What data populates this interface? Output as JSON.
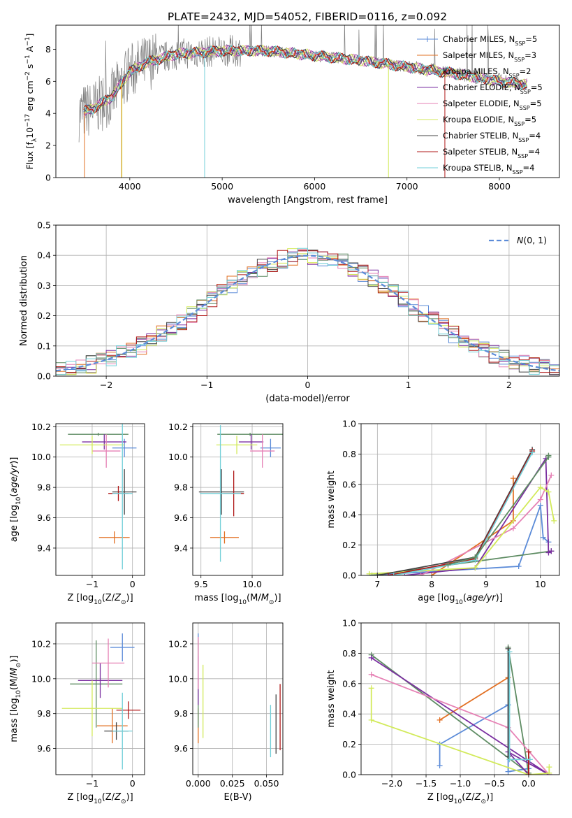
{
  "figure_title": "PLATE=2432, MJD=54052, FIBERID=0116, z=0.092",
  "colors": {
    "Chabrier MILES": "#5b8bd8",
    "Salpeter MILES": "#e27023",
    "Kroupa MILES": "#5e8c63",
    "Chabrier ELODIE": "#7a2ea0",
    "Salpeter ELODIE": "#e681b5",
    "Kroupa ELODIE": "#d2ea5a",
    "Chabrier STELIB": "#444444",
    "Salpeter STELIB": "#b01818",
    "Kroupa STELIB": "#72cfd8",
    "data_spectrum": "#7f7f7f",
    "gaussian": "#5b8bd8",
    "grid": "#b0b0b0"
  },
  "chart_data": [
    {
      "type": "line",
      "id": "spectrum",
      "title": "",
      "xlabel": "wavelength [Angstrom, rest frame]",
      "ylabel": "Flux [f_λ 10^-17 erg cm^-2 s^-1 A^-1]",
      "xlim": [
        3200,
        8650
      ],
      "ylim": [
        0,
        9.5
      ],
      "xticks": [
        4000,
        5000,
        6000,
        7000,
        8000
      ],
      "yticks": [
        0,
        2,
        4,
        6,
        8
      ],
      "grid": false,
      "legend_position": "top-right",
      "data_continuum": {
        "x": [
          3450,
          3600,
          3800,
          4000,
          4200,
          4500,
          5000,
          5500,
          6000,
          6500,
          7000,
          7500,
          8000,
          8300
        ],
        "y": [
          4.0,
          4.3,
          5.0,
          6.6,
          7.2,
          7.7,
          7.9,
          7.9,
          7.6,
          7.3,
          6.9,
          6.5,
          6.0,
          5.8
        ]
      },
      "legend": [
        {
          "model": "Chabrier MILES",
          "n_ssp": "5"
        },
        {
          "model": "Salpeter MILES",
          "n_ssp": "3"
        },
        {
          "model": "Kroupa MILES",
          "n_ssp": "2"
        },
        {
          "model": "Chabrier ELODIE",
          "n_ssp": "5"
        },
        {
          "model": "Salpeter ELODIE",
          "n_ssp": "5"
        },
        {
          "model": "Kroupa ELODIE",
          "n_ssp": "5"
        },
        {
          "model": "Chabrier STELIB",
          "n_ssp": "4"
        },
        {
          "model": "Salpeter STELIB",
          "n_ssp": "4"
        },
        {
          "model": "Kroupa STELIB",
          "n_ssp": "4"
        }
      ]
    },
    {
      "type": "step",
      "id": "residuals",
      "title": "",
      "xlabel": "(data-model)/error",
      "ylabel": "Normed distribution",
      "xlim": [
        -2.5,
        2.5
      ],
      "ylim": [
        0,
        0.5
      ],
      "xticks": [
        -2,
        -1,
        0,
        1,
        2
      ],
      "yticks": [
        0.0,
        0.1,
        0.2,
        0.3,
        0.4,
        0.5
      ],
      "grid": true,
      "legend_position": "top-right",
      "gaussian_label": "N(0,1)",
      "bin_edges": [
        -2.5,
        -2.4,
        -2.3,
        -2.2,
        -2.1,
        -2.0,
        -1.9,
        -1.8,
        -1.7,
        -1.6,
        -1.5,
        -1.4,
        -1.3,
        -1.2,
        -1.1,
        -1.0,
        -0.9,
        -0.8,
        -0.7,
        -0.6,
        -0.5,
        -0.4,
        -0.3,
        -0.2,
        -0.1,
        0.0,
        0.1,
        0.2,
        0.3,
        0.4,
        0.5,
        0.6,
        0.7,
        0.8,
        0.9,
        1.0,
        1.1,
        1.2,
        1.3,
        1.4,
        1.5,
        1.6,
        1.7,
        1.8,
        1.9,
        2.0,
        2.1,
        2.2,
        2.3,
        2.4,
        2.5
      ]
    },
    {
      "type": "errorbar",
      "id": "age-vs-Z",
      "xlabel": "Z [log10(Z/Z☉)]",
      "ylabel": "age  [log10(age/yr)]",
      "xlim": [
        -1.9,
        0.3
      ],
      "ylim": [
        9.22,
        10.22
      ],
      "xticks": [
        -1,
        0
      ],
      "yticks": [
        9.4,
        9.6,
        9.8,
        10.0,
        10.2
      ],
      "grid": true,
      "points": [
        {
          "model": "Chabrier MILES",
          "x": -0.2,
          "y": 10.06,
          "xerr": 0.3,
          "yerr": 0.06
        },
        {
          "model": "Salpeter MILES",
          "x": -0.45,
          "y": 9.47,
          "xerr": 0.38,
          "yerr": 0.04
        },
        {
          "model": "Kroupa MILES",
          "x": -0.85,
          "y": 10.15,
          "xerr": 0.75,
          "yerr": 0.01
        },
        {
          "model": "Chabrier ELODIE",
          "x": -0.7,
          "y": 10.1,
          "xerr": 0.55,
          "yerr": 0.05
        },
        {
          "model": "Salpeter ELODIE",
          "x": -0.65,
          "y": 10.04,
          "xerr": 0.35,
          "yerr": 0.11
        },
        {
          "model": "Kroupa ELODIE",
          "x": -1.0,
          "y": 10.08,
          "xerr": 0.8,
          "yerr": 0.06
        },
        {
          "model": "Chabrier STELIB",
          "x": -0.2,
          "y": 9.77,
          "xerr": 0.3,
          "yerr": 0.15
        },
        {
          "model": "Salpeter STELIB",
          "x": -0.35,
          "y": 9.76,
          "xerr": 0.25,
          "yerr": 0.05
        },
        {
          "model": "Kroupa STELIB",
          "x": -0.25,
          "y": 9.76,
          "xerr": 0.25,
          "yerr": 0.5
        }
      ]
    },
    {
      "type": "errorbar",
      "id": "age-vs-mass",
      "xlabel": "mass [log10(M/M☉)]",
      "ylabel": "",
      "xlim": [
        9.42,
        10.3
      ],
      "ylim": [
        9.22,
        10.22
      ],
      "xticks": [
        9.5,
        10.0
      ],
      "yticks": [
        9.4,
        9.6,
        9.8,
        10.0,
        10.2
      ],
      "grid": true,
      "points": [
        {
          "model": "Chabrier MILES",
          "x": 10.18,
          "y": 10.06,
          "xerr": 0.1,
          "yerr": 0.06
        },
        {
          "model": "Salpeter MILES",
          "x": 9.73,
          "y": 9.47,
          "xerr": 0.14,
          "yerr": 0.04
        },
        {
          "model": "Kroupa MILES",
          "x": 9.98,
          "y": 10.15,
          "xerr": 0.32,
          "yerr": 0.01
        },
        {
          "model": "Chabrier ELODIE",
          "x": 9.99,
          "y": 10.1,
          "xerr": 0.12,
          "yerr": 0.05
        },
        {
          "model": "Salpeter ELODIE",
          "x": 10.1,
          "y": 10.04,
          "xerr": 0.12,
          "yerr": 0.11
        },
        {
          "model": "Kroupa ELODIE",
          "x": 9.85,
          "y": 10.08,
          "xerr": 0.2,
          "yerr": 0.06
        },
        {
          "model": "Chabrier STELIB",
          "x": 9.7,
          "y": 9.77,
          "xerr": 0.22,
          "yerr": 0.15
        },
        {
          "model": "Salpeter STELIB",
          "x": 9.82,
          "y": 9.76,
          "xerr": 0.1,
          "yerr": 0.15
        },
        {
          "model": "Kroupa STELIB",
          "x": 9.69,
          "y": 9.76,
          "xerr": 0.2,
          "yerr": 0.45
        }
      ]
    },
    {
      "type": "line",
      "id": "weight-vs-age",
      "xlabel": "age  [log10(age/yr)]",
      "ylabel": "mass weight",
      "xlim": [
        6.7,
        10.35
      ],
      "ylim": [
        0,
        1.0
      ],
      "xticks": [
        7,
        8,
        9,
        10
      ],
      "yticks": [
        0.0,
        0.2,
        0.4,
        0.6,
        0.8,
        1.0
      ],
      "grid": true,
      "series": [
        {
          "model": "Chabrier MILES",
          "x": [
            6.85,
            9.6,
            10.0,
            10.05,
            10.15
          ],
          "y": [
            0.0,
            0.06,
            0.46,
            0.25,
            0.22
          ]
        },
        {
          "model": "Salpeter MILES",
          "x": [
            8.0,
            9.5,
            9.5
          ],
          "y": [
            0.0,
            0.36,
            0.64
          ]
        },
        {
          "model": "Kroupa MILES",
          "x": [
            6.9,
            10.2
          ],
          "y": [
            0.0,
            0.16
          ]
        },
        {
          "model": "Chabrier ELODIE",
          "x": [
            7.5,
            8.8,
            10.1,
            10.15,
            10.2
          ],
          "y": [
            0.0,
            0.05,
            0.77,
            0.15,
            0.16
          ]
        },
        {
          "model": "Salpeter ELODIE",
          "x": [
            7.8,
            9.5,
            10.0,
            10.2
          ],
          "y": [
            0.0,
            0.31,
            0.5,
            0.66
          ]
        },
        {
          "model": "Kroupa ELODIE",
          "x": [
            6.85,
            8.8,
            10.0,
            10.15,
            10.25
          ],
          "y": [
            0.01,
            0.05,
            0.58,
            0.55,
            0.36
          ]
        },
        {
          "model": "Chabrier STELIB",
          "x": [
            7.0,
            8.8,
            9.85
          ],
          "y": [
            0.0,
            0.12,
            0.83
          ]
        },
        {
          "model": "Salpeter STELIB",
          "x": [
            7.2,
            8.8,
            9.85
          ],
          "y": [
            0.0,
            0.11,
            0.82
          ]
        },
        {
          "model": "Kroupa STELIB",
          "x": [
            7.3,
            8.8,
            9.85
          ],
          "y": [
            0.0,
            0.1,
            0.81
          ]
        },
        {
          "model": "Kroupa MILES",
          "x": [
            8.3,
            8.8,
            10.15,
            10.15
          ],
          "y": [
            0.07,
            0.12,
            0.78,
            0.79
          ]
        }
      ]
    },
    {
      "type": "errorbar",
      "id": "mass-vs-Z",
      "xlabel": "Z [log10(Z/Z☉)]",
      "ylabel": "mass [log10(M/M☉)]",
      "xlim": [
        -1.9,
        0.3
      ],
      "ylim": [
        9.45,
        10.32
      ],
      "xticks": [
        -1,
        0
      ],
      "yticks": [
        9.6,
        9.8,
        10.0,
        10.2
      ],
      "grid": true,
      "points": [
        {
          "model": "Chabrier MILES",
          "x": -0.25,
          "y": 10.18,
          "xerr": 0.3,
          "yerr": 0.08
        },
        {
          "model": "Salpeter MILES",
          "x": -0.5,
          "y": 9.73,
          "xerr": 0.38,
          "yerr": 0.1
        },
        {
          "model": "Kroupa MILES",
          "x": -0.9,
          "y": 9.97,
          "xerr": 0.65,
          "yerr": 0.25
        },
        {
          "model": "Chabrier ELODIE",
          "x": -0.8,
          "y": 9.99,
          "xerr": 0.55,
          "yerr": 0.1
        },
        {
          "model": "Salpeter ELODIE",
          "x": -0.6,
          "y": 10.09,
          "xerr": 0.4,
          "yerr": 0.14
        },
        {
          "model": "Kroupa ELODIE",
          "x": -1.0,
          "y": 9.83,
          "xerr": 0.75,
          "yerr": 0.16
        },
        {
          "model": "Chabrier STELIB",
          "x": -0.4,
          "y": 9.7,
          "xerr": 0.3,
          "yerr": 0.05
        },
        {
          "model": "Salpeter STELIB",
          "x": -0.1,
          "y": 9.82,
          "xerr": 0.3,
          "yerr": 0.05
        },
        {
          "model": "Kroupa STELIB",
          "x": -0.25,
          "y": 9.7,
          "xerr": 0.25,
          "yerr": 0.22
        }
      ]
    },
    {
      "type": "errorbar",
      "id": "mass-vs-ebv",
      "xlabel": "E(B-V)",
      "ylabel": "",
      "xlim": [
        -0.004,
        0.062
      ],
      "ylim": [
        9.45,
        10.32
      ],
      "xticks": [
        0.0,
        0.025,
        0.05
      ],
      "yticks": [
        9.6,
        9.8,
        10.0,
        10.2
      ],
      "grid": true,
      "points": [
        {
          "model": "Chabrier MILES",
          "x": 0.0,
          "y": 10.18,
          "xerr": 0.0,
          "yerr": 0.08
        },
        {
          "model": "Salpeter MILES",
          "x": 0.0,
          "y": 9.73,
          "xerr": 0.0,
          "yerr": 0.1
        },
        {
          "model": "Kroupa MILES",
          "x": 0.0,
          "y": 9.97,
          "xerr": 0.0,
          "yerr": 0.25
        },
        {
          "model": "Chabrier ELODIE",
          "x": 0.0,
          "y": 9.99,
          "xerr": 0.0,
          "yerr": 0.14
        },
        {
          "model": "Salpeter ELODIE",
          "x": 0.0,
          "y": 10.09,
          "xerr": 0.0,
          "yerr": 0.15
        },
        {
          "model": "Kroupa ELODIE",
          "x": 0.0035,
          "y": 9.87,
          "xerr": 0.0,
          "yerr": 0.21
        },
        {
          "model": "Chabrier STELIB",
          "x": 0.057,
          "y": 9.74,
          "xerr": 0.0,
          "yerr": 0.17
        },
        {
          "model": "Salpeter STELIB",
          "x": 0.06,
          "y": 9.78,
          "xerr": 0.0,
          "yerr": 0.19
        },
        {
          "model": "Kroupa STELIB",
          "x": 0.053,
          "y": 9.7,
          "xerr": 0.0,
          "yerr": 0.15
        }
      ]
    },
    {
      "type": "line",
      "id": "weight-vs-Z",
      "xlabel": "Z [log10(Z/Z☉)]",
      "ylabel": "mass weight",
      "xlim": [
        -2.45,
        0.45
      ],
      "ylim": [
        0,
        1.0
      ],
      "xticks": [
        -2.0,
        -1.5,
        -1.0,
        -0.5,
        0.0
      ],
      "yticks": [
        0.0,
        0.2,
        0.4,
        0.6,
        0.8,
        1.0
      ],
      "grid": true,
      "series": [
        {
          "model": "Chabrier MILES",
          "x": [
            -1.3,
            -1.3,
            -0.3,
            -0.3,
            0.0,
            0.0
          ],
          "y": [
            0.06,
            0.2,
            0.46,
            0.02,
            0.04,
            0.0
          ]
        },
        {
          "model": "Salpeter MILES",
          "x": [
            -1.3,
            -0.3
          ],
          "y": [
            0.36,
            0.64
          ]
        },
        {
          "model": "Kroupa MILES",
          "x": [
            -2.3,
            0.0,
            -0.3
          ],
          "y": [
            0.79,
            0.01,
            0.84
          ]
        },
        {
          "model": "Chabrier ELODIE",
          "x": [
            -2.3,
            0.3,
            -0.3,
            0.0
          ],
          "y": [
            0.77,
            0.0,
            0.15,
            0.0
          ]
        },
        {
          "model": "Salpeter ELODIE",
          "x": [
            -2.3,
            -0.3,
            0.3
          ],
          "y": [
            0.66,
            0.31,
            0.0
          ]
        },
        {
          "model": "Kroupa ELODIE",
          "x": [
            -2.3,
            -2.3,
            0.0,
            0.3,
            0.3
          ],
          "y": [
            0.57,
            0.36,
            0.0,
            0.01,
            0.05
          ]
        },
        {
          "model": "Chabrier STELIB",
          "x": [
            -0.3,
            -0.3
          ],
          "y": [
            0.83,
            0.12
          ]
        },
        {
          "model": "Salpeter STELIB",
          "x": [
            0.0,
            0.0
          ],
          "y": [
            0.15,
            0.0
          ]
        },
        {
          "model": "Kroupa STELIB",
          "x": [
            -0.28,
            -0.28,
            0.02
          ],
          "y": [
            0.81,
            0.1,
            0.1
          ]
        }
      ]
    }
  ]
}
